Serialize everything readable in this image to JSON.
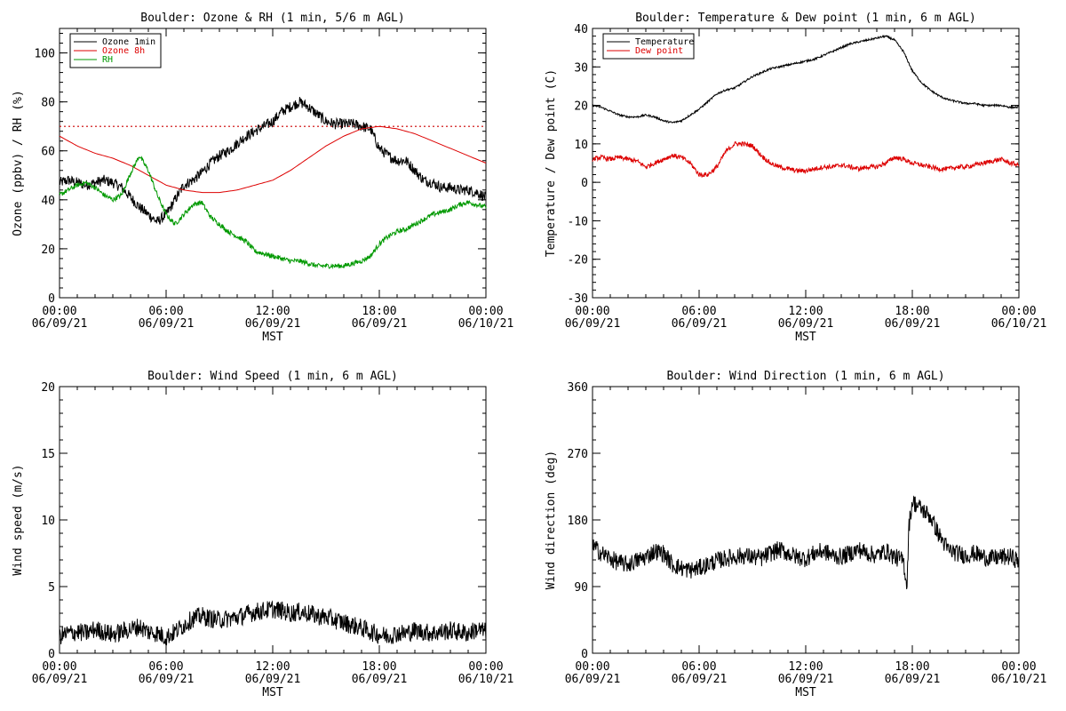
{
  "chart_data": [
    {
      "type": "line",
      "title": "Boulder: Ozone & RH (1 min, 5/6 m AGL)",
      "xlabel": "MST",
      "ylabel": "Ozone (ppbv) / RH (%)",
      "ylim": [
        0,
        110
      ],
      "yticks": [
        0,
        20,
        40,
        60,
        80,
        100
      ],
      "xlim": [
        0,
        24
      ],
      "xticks": [
        {
          "h": 0,
          "time": "00:00",
          "date": "06/09/21"
        },
        {
          "h": 6,
          "time": "06:00",
          "date": "06/09/21"
        },
        {
          "h": 12,
          "time": "12:00",
          "date": "06/09/21"
        },
        {
          "h": 18,
          "time": "18:00",
          "date": "06/09/21"
        },
        {
          "h": 24,
          "time": "00:00",
          "date": "06/10/21"
        }
      ],
      "legend": "top-left",
      "reference_line": {
        "y": 70,
        "color": "#cc0000",
        "style": "dotted"
      },
      "series": [
        {
          "name": "Ozone 1min",
          "color": "#000000",
          "noise": 2.2,
          "x": [
            0,
            0.5,
            1,
            1.5,
            2,
            2.5,
            3,
            3.5,
            4,
            4.5,
            5,
            5.5,
            6,
            6.5,
            7,
            7.5,
            8,
            8.5,
            9,
            9.5,
            10,
            10.5,
            11,
            11.5,
            12,
            12.5,
            13,
            13.5,
            14,
            14.5,
            15,
            15.5,
            16,
            16.5,
            17,
            17.5,
            18,
            18.5,
            19,
            19.5,
            20,
            20.5,
            21,
            21.5,
            22,
            22.5,
            23,
            23.5,
            24
          ],
          "y": [
            47,
            48,
            47,
            46,
            47,
            48,
            47,
            45,
            41,
            37,
            34,
            31,
            34,
            40,
            46,
            48,
            51,
            55,
            58,
            60,
            63,
            66,
            68,
            70,
            72,
            76,
            78,
            80,
            78,
            75,
            72,
            71,
            71,
            71,
            70,
            69,
            61,
            58,
            56,
            56,
            52,
            48,
            47,
            45,
            45,
            44,
            44,
            43,
            41
          ]
        },
        {
          "name": "Ozone 8h",
          "color": "#dd0000",
          "noise": 0,
          "x": [
            0,
            1,
            2,
            3,
            4,
            5,
            6,
            7,
            8,
            9,
            10,
            11,
            12,
            13,
            14,
            15,
            16,
            17,
            18,
            19,
            20,
            21,
            22,
            23,
            24
          ],
          "y": [
            66,
            62,
            59,
            57,
            54,
            50,
            46,
            44,
            43,
            43,
            44,
            46,
            48,
            52,
            57,
            62,
            66,
            69,
            70,
            69,
            67,
            64,
            61,
            58,
            55
          ]
        },
        {
          "name": "RH",
          "color": "#009900",
          "noise": 1.0,
          "x": [
            0,
            0.5,
            1,
            1.5,
            2,
            2.5,
            3,
            3.5,
            4,
            4.5,
            5,
            5.5,
            6,
            6.5,
            7,
            7.5,
            8,
            8.5,
            9,
            9.5,
            10,
            10.5,
            11,
            11.5,
            12,
            12.5,
            13,
            13.5,
            14,
            14.5,
            15,
            15.5,
            16,
            16.5,
            17,
            17.5,
            18,
            18.5,
            19,
            19.5,
            20,
            20.5,
            21,
            21.5,
            22,
            22.5,
            23,
            23.5,
            24
          ],
          "y": [
            42,
            44,
            46,
            47,
            45,
            42,
            40,
            42,
            51,
            58,
            52,
            42,
            34,
            30,
            34,
            38,
            39,
            33,
            30,
            27,
            25,
            23,
            19,
            18,
            17,
            16,
            15,
            15,
            14,
            13,
            13,
            13,
            13,
            14,
            15,
            17,
            22,
            25,
            27,
            28,
            30,
            32,
            34,
            35,
            36,
            38,
            39,
            38,
            37
          ]
        }
      ]
    },
    {
      "type": "line",
      "title": "Boulder: Temperature & Dew point (1 min, 6 m AGL)",
      "xlabel": "MST",
      "ylabel": "Temperature / Dew point (C)",
      "ylim": [
        -30,
        40
      ],
      "yticks": [
        -30,
        -20,
        -10,
        0,
        10,
        20,
        30,
        40
      ],
      "xlim": [
        0,
        24
      ],
      "xticks": [
        {
          "h": 0,
          "time": "00:00",
          "date": "06/09/21"
        },
        {
          "h": 6,
          "time": "06:00",
          "date": "06/09/21"
        },
        {
          "h": 12,
          "time": "12:00",
          "date": "06/09/21"
        },
        {
          "h": 18,
          "time": "18:00",
          "date": "06/09/21"
        },
        {
          "h": 24,
          "time": "00:00",
          "date": "06/10/21"
        }
      ],
      "legend": "top-left",
      "series": [
        {
          "name": "Temperature",
          "color": "#000000",
          "noise": 0.25,
          "x": [
            0,
            0.5,
            1,
            1.5,
            2,
            2.5,
            3,
            3.5,
            4,
            4.5,
            5,
            5.5,
            6,
            6.5,
            7,
            7.5,
            8,
            8.5,
            9,
            9.5,
            10,
            10.5,
            11,
            11.5,
            12,
            12.5,
            13,
            13.5,
            14,
            14.5,
            15,
            15.5,
            16,
            16.5,
            17,
            17.5,
            18,
            18.5,
            19,
            19.5,
            20,
            20.5,
            21,
            21.5,
            22,
            22.5,
            23,
            23.5,
            24
          ],
          "y": [
            20,
            19.5,
            18.5,
            17.5,
            17,
            17,
            17.5,
            17,
            16,
            15.5,
            16,
            17.5,
            19,
            21,
            23,
            24,
            24.5,
            26,
            27.5,
            28.5,
            29.5,
            30,
            30.5,
            31,
            31.5,
            32,
            33,
            34,
            35,
            36,
            36.5,
            37,
            37.5,
            38,
            37,
            34,
            29,
            26,
            24,
            22.5,
            21.5,
            21,
            20.5,
            20.5,
            20,
            20,
            20,
            19.5,
            19.5
          ]
        },
        {
          "name": "Dew point",
          "color": "#dd0000",
          "noise": 0.6,
          "x": [
            0,
            0.5,
            1,
            1.5,
            2,
            2.5,
            3,
            3.5,
            4,
            4.5,
            5,
            5.5,
            6,
            6.5,
            7,
            7.5,
            8,
            8.5,
            9,
            9.5,
            10,
            10.5,
            11,
            11.5,
            12,
            12.5,
            13,
            13.5,
            14,
            14.5,
            15,
            15.5,
            16,
            16.5,
            17,
            17.5,
            18,
            18.5,
            19,
            19.5,
            20,
            20.5,
            21,
            21.5,
            22,
            22.5,
            23,
            23.5,
            24
          ],
          "y": [
            6,
            6.5,
            6,
            6.5,
            6,
            5.5,
            4,
            5,
            6,
            7,
            6.5,
            5,
            2,
            2,
            4,
            8,
            10,
            10,
            9.5,
            7,
            5,
            4,
            3.5,
            3,
            3,
            3.5,
            4,
            4,
            4.5,
            4,
            3.5,
            4,
            4,
            5,
            6.5,
            6,
            5,
            4.5,
            4,
            3.5,
            3.5,
            4,
            4,
            4.5,
            5,
            5.5,
            6,
            5,
            4.5
          ]
        }
      ]
    },
    {
      "type": "line",
      "title": "Boulder: Wind Speed (1 min, 6 m AGL)",
      "xlabel": "MST",
      "ylabel": "Wind speed (m/s)",
      "ylim": [
        0,
        20
      ],
      "yticks": [
        0,
        5,
        10,
        15,
        20
      ],
      "xlim": [
        0,
        24
      ],
      "xticks": [
        {
          "h": 0,
          "time": "00:00",
          "date": "06/09/21"
        },
        {
          "h": 6,
          "time": "06:00",
          "date": "06/09/21"
        },
        {
          "h": 12,
          "time": "12:00",
          "date": "06/09/21"
        },
        {
          "h": 18,
          "time": "18:00",
          "date": "06/09/21"
        },
        {
          "h": 24,
          "time": "00:00",
          "date": "06/10/21"
        }
      ],
      "series": [
        {
          "name": "",
          "color": "#000000",
          "noise": 0.7,
          "x": [
            0,
            0.5,
            1,
            1.5,
            2,
            2.5,
            3,
            3.5,
            4,
            4.5,
            5,
            5.5,
            6,
            6.5,
            7,
            7.5,
            8,
            8.5,
            9,
            9.5,
            10,
            10.5,
            11,
            11.5,
            12,
            12.5,
            13,
            13.5,
            14,
            14.5,
            15,
            15.5,
            16,
            16.5,
            17,
            17.5,
            18,
            18.5,
            19,
            19.5,
            20,
            20.5,
            21,
            21.5,
            22,
            22.5,
            23,
            23.5,
            24
          ],
          "y": [
            1.3,
            1.5,
            1.6,
            1.5,
            1.8,
            1.6,
            1.4,
            1.6,
            1.8,
            2,
            1.6,
            1.5,
            1.2,
            1.6,
            2.1,
            2.6,
            2.8,
            2.6,
            2.5,
            2.6,
            2.7,
            2.9,
            3.1,
            3.2,
            3.3,
            3.2,
            3.0,
            3.1,
            3.0,
            2.8,
            2.7,
            2.5,
            2.3,
            2.1,
            1.9,
            1.6,
            1.4,
            1.3,
            1.5,
            1.5,
            1.7,
            1.6,
            1.5,
            1.6,
            1.7,
            1.6,
            1.5,
            1.8,
            1.6
          ]
        }
      ]
    },
    {
      "type": "line",
      "title": "Boulder: Wind Direction (1 min, 6 m AGL)",
      "xlabel": "MST",
      "ylabel": "Wind direction (deg)",
      "ylim": [
        0,
        360
      ],
      "yticks": [
        0,
        90,
        180,
        270,
        360
      ],
      "xlim": [
        0,
        24
      ],
      "xticks": [
        {
          "h": 0,
          "time": "00:00",
          "date": "06/09/21"
        },
        {
          "h": 6,
          "time": "06:00",
          "date": "06/09/21"
        },
        {
          "h": 12,
          "time": "12:00",
          "date": "06/09/21"
        },
        {
          "h": 18,
          "time": "18:00",
          "date": "06/09/21"
        },
        {
          "h": 24,
          "time": "00:00",
          "date": "06/10/21"
        }
      ],
      "series": [
        {
          "name": "",
          "color": "#000000",
          "noise": 12,
          "x": [
            0,
            0.5,
            1,
            1.5,
            2,
            2.5,
            3,
            3.5,
            4,
            4.5,
            5,
            5.5,
            6,
            6.5,
            7,
            7.5,
            8,
            8.5,
            9,
            9.5,
            10,
            10.5,
            11,
            11.5,
            12,
            12.5,
            13,
            13.5,
            14,
            14.5,
            15,
            15.5,
            16,
            16.5,
            17,
            17.5,
            17.7,
            17.8,
            18,
            18.5,
            19,
            19.5,
            20,
            20.5,
            21,
            21.5,
            22,
            22.5,
            23,
            23.5,
            24
          ],
          "y": [
            145,
            135,
            128,
            122,
            120,
            125,
            130,
            138,
            135,
            120,
            115,
            112,
            115,
            120,
            125,
            128,
            130,
            132,
            130,
            128,
            135,
            140,
            135,
            130,
            128,
            135,
            138,
            132,
            130,
            135,
            140,
            135,
            132,
            138,
            130,
            125,
            90,
            170,
            205,
            195,
            185,
            160,
            140,
            135,
            132,
            135,
            130,
            128,
            130,
            130,
            125
          ]
        }
      ]
    }
  ]
}
